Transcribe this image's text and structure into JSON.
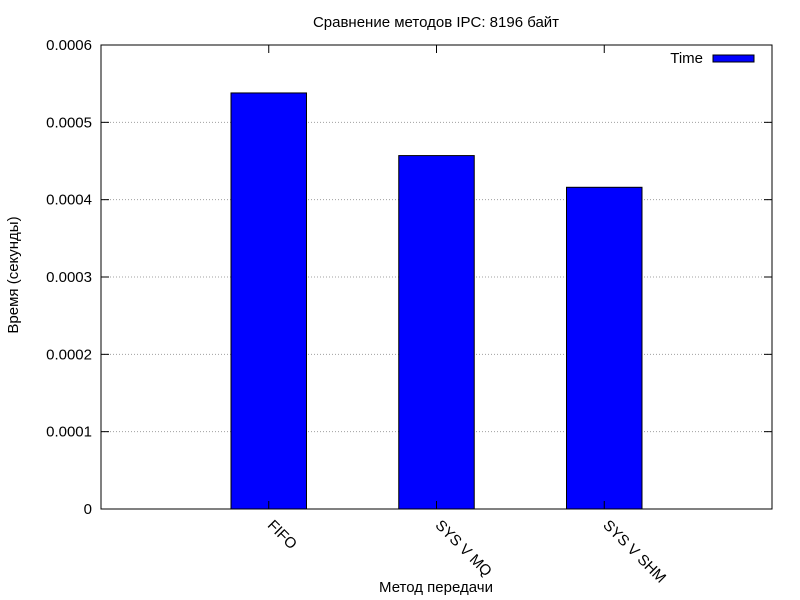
{
  "chart_data": {
    "type": "bar",
    "title": "Сравнение методов IPC: 8196 байт",
    "xlabel": "Метод передачи",
    "ylabel": "Время (секунды)",
    "categories": [
      "FIFO",
      "SYS V MQ",
      "SYS V SHM"
    ],
    "series": [
      {
        "name": "Time",
        "values": [
          0.000538,
          0.000457,
          0.000416
        ]
      }
    ],
    "ylim": [
      0,
      0.0006
    ],
    "yticks": [
      0,
      0.0001,
      0.0002,
      0.0003,
      0.0004,
      0.0005,
      0.0006
    ],
    "ytick_labels": [
      "0",
      "0.0001",
      "0.0002",
      "0.0003",
      "0.0004",
      "0.0005",
      "0.0006"
    ],
    "grid": "horizontal-dotted",
    "legend": "top-right",
    "bar_color": "#0000ff",
    "bar_edge_color": "#000000"
  }
}
